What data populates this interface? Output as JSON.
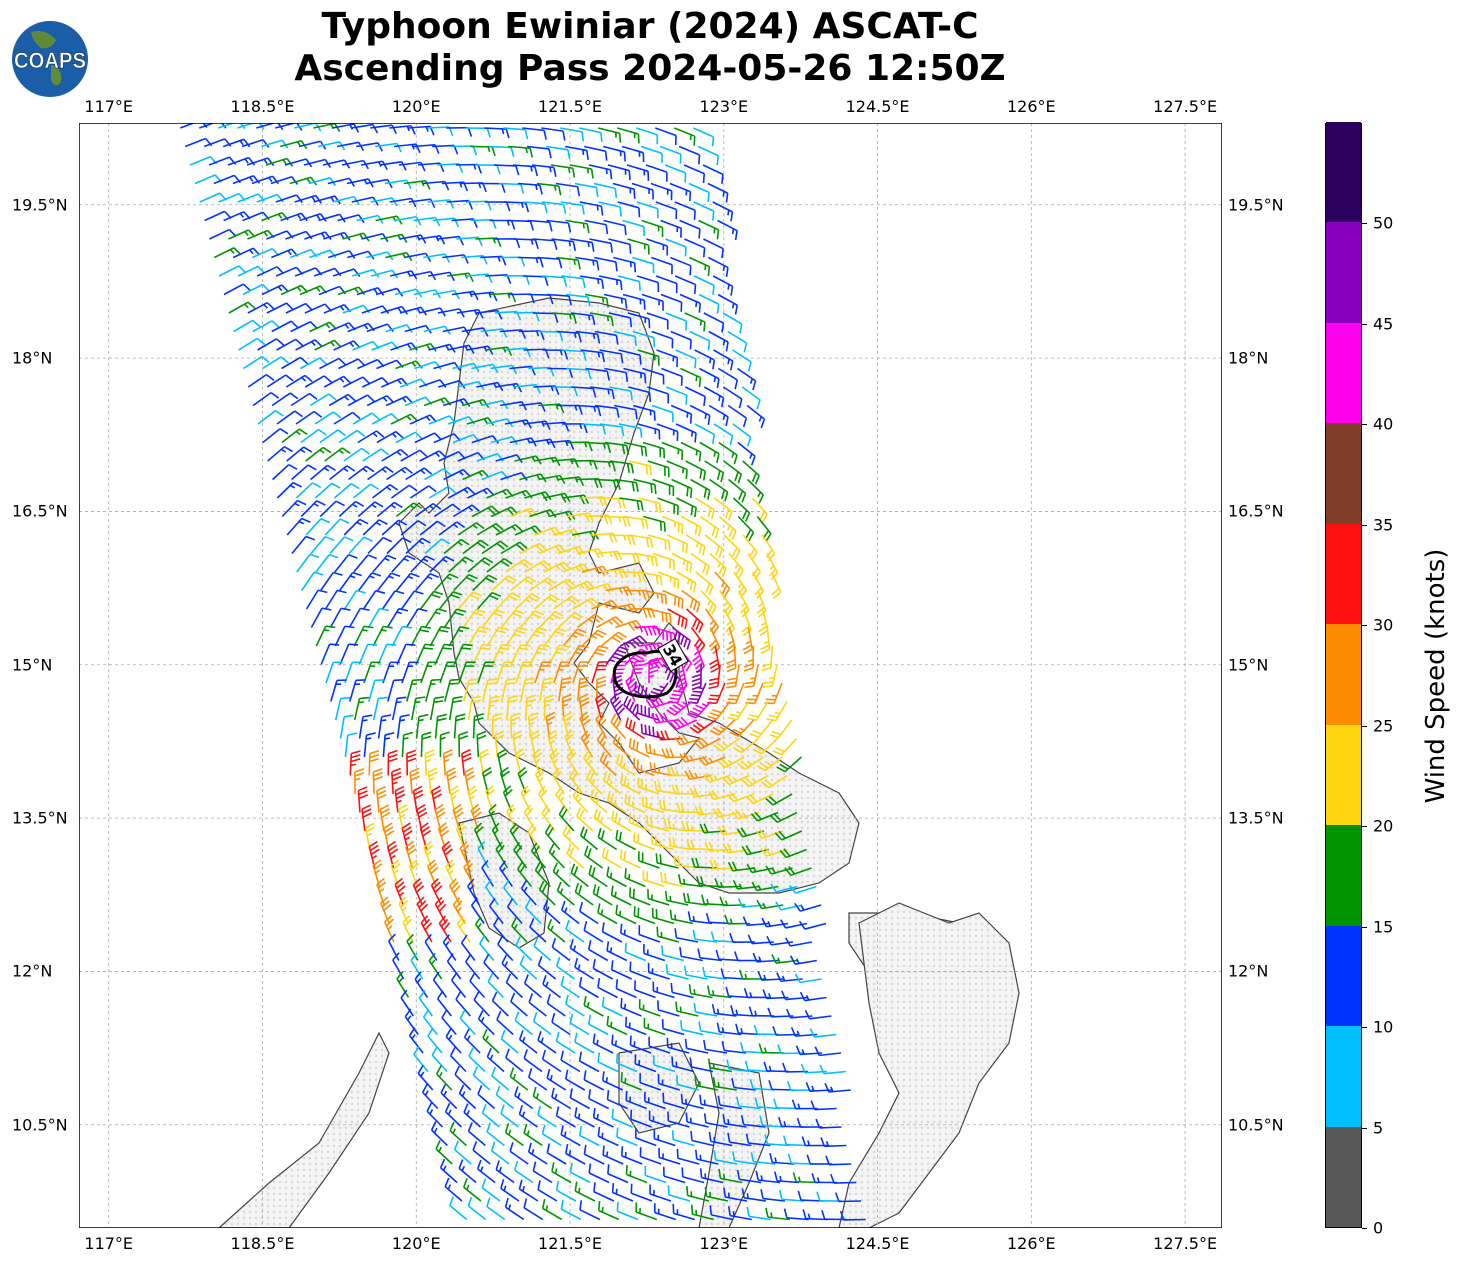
{
  "title": {
    "line1": "Typhoon Ewiniar (2024) ASCAT-C",
    "line2": "Ascending Pass 2024-05-26 12:50Z"
  },
  "logo": {
    "text": "COAPS"
  },
  "map": {
    "lon_range": [
      116.71,
      127.86
    ],
    "lat_range": [
      9.49,
      20.3
    ],
    "lon_ticks": [
      "117°E",
      "118.5°E",
      "120°E",
      "121.5°E",
      "123°E",
      "124.5°E",
      "126°E",
      "127.5°E"
    ],
    "lat_ticks": [
      "19.5°N",
      "18°N",
      "16.5°N",
      "15°N",
      "13.5°N",
      "12°N",
      "10.5°N"
    ],
    "gridlines": true,
    "storm_center": {
      "lon": 122.35,
      "lat": 14.85
    },
    "contour_label": "34"
  },
  "colorbar": {
    "label": "Wind Speed (knots)",
    "ticks": [
      "0",
      "5",
      "10",
      "15",
      "20",
      "25",
      "30",
      "35",
      "40",
      "45",
      "50"
    ],
    "colors": [
      "#585858",
      "#00bfff",
      "#0033ff",
      "#009500",
      "#ffd411",
      "#ff8c00",
      "#ff1010",
      "#7f3d2a",
      "#ff00ee",
      "#8800bb",
      "#2d005e"
    ]
  }
}
